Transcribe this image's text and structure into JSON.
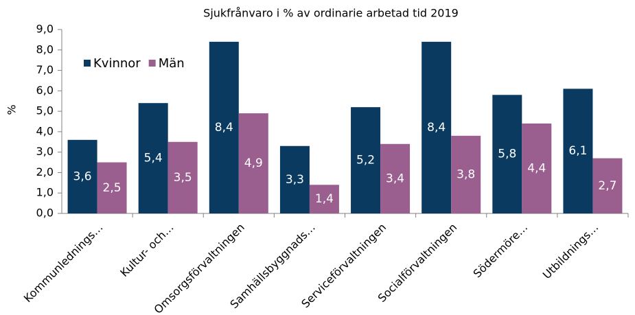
{
  "chart_data": {
    "type": "bar",
    "title": "Sjukfrånvaro i % av ordinarie arbetad tid 2019",
    "y_label": "%",
    "categories": [
      "Kommunlednings…",
      "Kultur- och…",
      "Omsorgsförvaltningen",
      "Samhällsbyggnads…",
      "Serviceförvaltningen",
      "Socialförvaltningen",
      "Södermöre…",
      "Utbildnings…"
    ],
    "series": [
      {
        "name": "Kvinnor",
        "color": "#0b3a60",
        "values": [
          3.6,
          5.4,
          8.4,
          3.3,
          5.2,
          8.4,
          5.8,
          6.1
        ],
        "value_labels": [
          "3,6",
          "5,4",
          "8,4",
          "3,3",
          "5,2",
          "8,4",
          "5,8",
          "6,1"
        ]
      },
      {
        "name": "Män",
        "color": "#9a5f8f",
        "values": [
          2.5,
          3.5,
          4.9,
          1.4,
          3.4,
          3.8,
          4.4,
          2.7
        ],
        "value_labels": [
          "2,5",
          "3,5",
          "4,9",
          "1,4",
          "3,4",
          "3,8",
          "4,4",
          "2,7"
        ]
      }
    ],
    "ylim": [
      0,
      9
    ],
    "yticks": [
      {
        "value": 0,
        "label": "0,0"
      },
      {
        "value": 1,
        "label": "1,0"
      },
      {
        "value": 2,
        "label": "2,0"
      },
      {
        "value": 3,
        "label": "3,0"
      },
      {
        "value": 4,
        "label": "4,0"
      },
      {
        "value": 5,
        "label": "5,0"
      },
      {
        "value": 6,
        "label": "6,0"
      },
      {
        "value": 7,
        "label": "7,0"
      },
      {
        "value": 8,
        "label": "8,0"
      },
      {
        "value": 9,
        "label": "9,0"
      }
    ],
    "grid": false,
    "legend": "upper left"
  }
}
